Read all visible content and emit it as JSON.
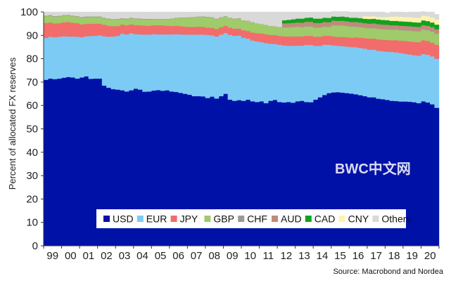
{
  "chart_data": {
    "type": "area",
    "stacked": true,
    "ylabel": "Percent of allocated FX reserves",
    "xlabel": "",
    "ylim": [
      0,
      100
    ],
    "yticks": [
      0,
      10,
      20,
      30,
      40,
      50,
      60,
      70,
      80,
      90,
      100
    ],
    "xlim": [
      1999.0,
      2021.0
    ],
    "xtick_labels": [
      "99",
      "00",
      "01",
      "02",
      "03",
      "04",
      "05",
      "06",
      "07",
      "08",
      "09",
      "10",
      "11",
      "12",
      "13",
      "14",
      "15",
      "16",
      "17",
      "18",
      "19",
      "20"
    ],
    "x_quarters": [
      1999.0,
      1999.25,
      1999.5,
      1999.75,
      2000.0,
      2000.25,
      2000.5,
      2000.75,
      2001.0,
      2001.25,
      2001.5,
      2001.75,
      2002.0,
      2002.25,
      2002.5,
      2002.75,
      2003.0,
      2003.25,
      2003.5,
      2003.75,
      2004.0,
      2004.25,
      2004.5,
      2004.75,
      2005.0,
      2005.25,
      2005.5,
      2005.75,
      2006.0,
      2006.25,
      2006.5,
      2006.75,
      2007.0,
      2007.25,
      2007.5,
      2007.75,
      2008.0,
      2008.25,
      2008.5,
      2008.75,
      2009.0,
      2009.25,
      2009.5,
      2009.75,
      2010.0,
      2010.25,
      2010.5,
      2010.75,
      2011.0,
      2011.25,
      2011.5,
      2011.75,
      2012.0,
      2012.25,
      2012.5,
      2012.75,
      2013.0,
      2013.25,
      2013.5,
      2013.75,
      2014.0,
      2014.25,
      2014.5,
      2014.75,
      2015.0,
      2015.25,
      2015.5,
      2015.75,
      2016.0,
      2016.25,
      2016.5,
      2016.75,
      2017.0,
      2017.25,
      2017.5,
      2017.75,
      2018.0,
      2018.25,
      2018.5,
      2018.75,
      2019.0,
      2019.25,
      2019.5,
      2019.75,
      2020.0,
      2020.25,
      2020.5,
      2020.75
    ],
    "series": [
      {
        "name": "USD",
        "color": "#0011a8",
        "values": [
          71.0,
          71.5,
          71.3,
          71.5,
          71.9,
          72.2,
          72.0,
          71.5,
          72.0,
          72.5,
          71.4,
          71.5,
          71.5,
          68.5,
          67.6,
          67.0,
          66.8,
          66.5,
          66.0,
          66.5,
          67.2,
          66.8,
          65.9,
          66.0,
          66.4,
          66.6,
          66.3,
          66.5,
          66.0,
          65.8,
          65.4,
          65.0,
          64.6,
          64.0,
          64.0,
          63.9,
          63.2,
          63.8,
          63.0,
          64.0,
          65.0,
          62.5,
          62.0,
          62.3,
          62.0,
          62.5,
          61.8,
          61.5,
          61.8,
          61.0,
          62.0,
          62.4,
          61.5,
          61.3,
          61.5,
          61.2,
          61.8,
          62.0,
          61.5,
          61.4,
          62.5,
          63.5,
          64.5,
          65.3,
          65.6,
          65.7,
          65.5,
          65.3,
          65.1,
          64.8,
          64.4,
          64.0,
          63.5,
          63.5,
          62.9,
          62.7,
          62.4,
          62.0,
          61.9,
          61.7,
          61.7,
          61.6,
          61.4,
          61.0,
          61.8,
          61.3,
          60.5,
          59.0
        ]
      },
      {
        "name": "EUR",
        "color": "#7ccbf5",
        "values": [
          17.9,
          17.9,
          17.9,
          17.9,
          17.7,
          17.3,
          17.5,
          17.9,
          17.2,
          17.1,
          18.3,
          18.3,
          18.5,
          21.1,
          21.8,
          22.5,
          23.0,
          24.2,
          24.4,
          24.4,
          23.3,
          23.6,
          24.4,
          24.3,
          24.1,
          23.8,
          24.1,
          23.9,
          24.4,
          24.7,
          25.0,
          25.3,
          25.7,
          26.3,
          26.3,
          26.4,
          27.0,
          26.2,
          26.5,
          26.3,
          26.0,
          27.7,
          27.8,
          27.6,
          27.0,
          26.1,
          26.0,
          25.9,
          25.3,
          25.7,
          24.4,
          23.9,
          24.5,
          24.4,
          24.1,
          24.3,
          23.8,
          23.6,
          24.4,
          24.5,
          23.0,
          22.0,
          21.5,
          20.7,
          20.1,
          19.8,
          19.9,
          19.9,
          19.9,
          20.1,
          20.2,
          20.3,
          20.4,
          20.4,
          20.5,
          20.5,
          20.6,
          20.9,
          20.8,
          20.7,
          20.4,
          20.2,
          20.1,
          20.3,
          20.2,
          20.4,
          20.5,
          21.0
        ]
      },
      {
        "name": "JPY",
        "color": "#f26c6b",
        "values": [
          6.4,
          6.1,
          5.9,
          5.8,
          6.0,
          6.2,
          5.9,
          5.8,
          5.5,
          5.3,
          5.3,
          5.2,
          5.0,
          4.9,
          4.7,
          4.4,
          4.2,
          3.9,
          3.9,
          3.8,
          3.9,
          3.9,
          3.9,
          3.8,
          3.8,
          3.9,
          3.9,
          3.7,
          3.6,
          3.6,
          3.5,
          3.4,
          3.3,
          3.3,
          3.4,
          3.3,
          3.1,
          3.2,
          3.2,
          3.2,
          3.1,
          3.1,
          3.1,
          3.0,
          3.2,
          3.3,
          3.4,
          3.5,
          3.7,
          3.8,
          3.8,
          3.8,
          3.8,
          3.9,
          3.9,
          4.0,
          4.0,
          3.9,
          3.9,
          3.9,
          3.9,
          3.9,
          3.8,
          3.8,
          3.8,
          3.8,
          3.9,
          4.0,
          4.0,
          4.2,
          4.4,
          4.5,
          4.7,
          4.8,
          4.9,
          4.9,
          5.0,
          5.0,
          5.2,
          5.3,
          5.5,
          5.6,
          5.7,
          5.8,
          5.9,
          5.9,
          5.9,
          6.0
        ]
      },
      {
        "name": "GBP",
        "color": "#9fcb6a",
        "values": [
          2.9,
          2.9,
          2.9,
          2.9,
          2.8,
          2.8,
          2.8,
          2.8,
          2.9,
          2.9,
          2.8,
          2.8,
          2.8,
          2.8,
          2.8,
          2.8,
          2.8,
          2.5,
          2.6,
          2.6,
          2.6,
          2.6,
          2.6,
          2.7,
          2.6,
          2.6,
          2.6,
          2.8,
          3.1,
          3.3,
          3.6,
          3.8,
          4.0,
          4.1,
          4.2,
          4.4,
          4.5,
          4.4,
          4.3,
          4.1,
          4.0,
          4.1,
          4.1,
          4.3,
          4.2,
          4.3,
          4.4,
          4.2,
          4.0,
          3.9,
          3.8,
          3.7,
          3.7,
          3.8,
          3.9,
          4.0,
          4.0,
          4.0,
          4.0,
          4.0,
          3.9,
          3.9,
          3.9,
          3.8,
          4.8,
          4.9,
          4.9,
          4.8,
          4.7,
          4.6,
          4.5,
          4.4,
          4.4,
          4.4,
          4.5,
          4.5,
          4.5,
          4.5,
          4.5,
          4.5,
          4.5,
          4.6,
          4.6,
          4.6,
          4.6,
          4.6,
          4.7,
          4.6
        ]
      },
      {
        "name": "CHF",
        "color": "#9a9a9a",
        "values": [
          0.3,
          0.3,
          0.3,
          0.3,
          0.3,
          0.3,
          0.3,
          0.3,
          0.3,
          0.3,
          0.3,
          0.3,
          0.3,
          0.3,
          0.3,
          0.3,
          0.3,
          0.3,
          0.3,
          0.3,
          0.3,
          0.3,
          0.3,
          0.3,
          0.2,
          0.2,
          0.2,
          0.2,
          0.2,
          0.2,
          0.2,
          0.2,
          0.2,
          0.2,
          0.2,
          0.2,
          0.2,
          0.2,
          0.2,
          0.2,
          0.2,
          0.2,
          0.2,
          0.2,
          0.1,
          0.1,
          0.1,
          0.1,
          0.1,
          0.1,
          0.1,
          0.1,
          0.1,
          0.2,
          0.2,
          0.2,
          0.2,
          0.2,
          0.2,
          0.2,
          0.2,
          0.2,
          0.2,
          0.2,
          0.2,
          0.2,
          0.2,
          0.2,
          0.2,
          0.2,
          0.2,
          0.2,
          0.2,
          0.2,
          0.2,
          0.2,
          0.2,
          0.2,
          0.2,
          0.2,
          0.2,
          0.2,
          0.2,
          0.2,
          0.2,
          0.2,
          0.2,
          0.2
        ]
      },
      {
        "name": "AUD",
        "color": "#c28a7c",
        "values": [
          0,
          0,
          0,
          0,
          0,
          0,
          0,
          0,
          0,
          0,
          0,
          0,
          0,
          0,
          0,
          0,
          0,
          0,
          0,
          0,
          0,
          0,
          0,
          0,
          0,
          0,
          0,
          0,
          0,
          0,
          0,
          0,
          0,
          0,
          0,
          0,
          0,
          0,
          0,
          0,
          0,
          0,
          0,
          0,
          0,
          0,
          0,
          0,
          0,
          0,
          0,
          0,
          0,
          1.5,
          1.6,
          1.6,
          1.7,
          1.7,
          1.8,
          1.8,
          1.8,
          1.8,
          1.8,
          1.8,
          1.8,
          1.8,
          1.8,
          1.8,
          1.8,
          1.8,
          1.8,
          1.8,
          1.8,
          1.8,
          1.8,
          1.8,
          1.8,
          1.7,
          1.7,
          1.7,
          1.7,
          1.7,
          1.7,
          1.7,
          1.7,
          1.7,
          1.7,
          1.8
        ]
      },
      {
        "name": "CAD",
        "color": "#12a21e",
        "values": [
          0,
          0,
          0,
          0,
          0,
          0,
          0,
          0,
          0,
          0,
          0,
          0,
          0,
          0,
          0,
          0,
          0,
          0,
          0,
          0,
          0,
          0,
          0,
          0,
          0,
          0,
          0,
          0,
          0,
          0,
          0,
          0,
          0,
          0,
          0,
          0,
          0,
          0,
          0,
          0,
          0,
          0,
          0,
          0,
          0,
          0,
          0,
          0,
          0,
          0,
          0,
          0,
          0,
          1.4,
          1.5,
          1.6,
          1.7,
          1.8,
          1.8,
          1.9,
          1.9,
          1.9,
          1.9,
          1.9,
          1.8,
          1.8,
          1.9,
          1.9,
          1.9,
          1.9,
          1.9,
          1.9,
          2.0,
          2.0,
          2.0,
          2.0,
          2.0,
          1.9,
          1.9,
          1.9,
          1.9,
          1.9,
          1.9,
          1.9,
          2.0,
          2.0,
          2.0,
          2.0
        ]
      },
      {
        "name": "CNY",
        "color": "#fff3b0",
        "values": [
          0,
          0,
          0,
          0,
          0,
          0,
          0,
          0,
          0,
          0,
          0,
          0,
          0,
          0,
          0,
          0,
          0,
          0,
          0,
          0,
          0,
          0,
          0,
          0,
          0,
          0,
          0,
          0,
          0,
          0,
          0,
          0,
          0,
          0,
          0,
          0,
          0,
          0,
          0,
          0,
          0,
          0,
          0,
          0,
          0,
          0,
          0,
          0,
          0,
          0,
          0,
          0,
          0,
          0,
          0,
          0,
          0,
          0,
          0,
          0,
          0,
          0,
          0,
          0,
          0,
          0,
          0,
          0,
          0,
          0,
          0,
          1.1,
          1.1,
          1.1,
          1.1,
          1.2,
          1.4,
          1.8,
          1.9,
          1.9,
          1.9,
          2.0,
          2.0,
          2.0,
          2.0,
          2.1,
          2.1,
          2.2
        ]
      },
      {
        "name": "Others",
        "color": "#d9d9d9",
        "values": [
          1.5,
          1.3,
          1.7,
          1.6,
          1.3,
          1.2,
          1.5,
          1.7,
          2.1,
          1.9,
          1.9,
          1.9,
          1.9,
          2.4,
          2.8,
          3.0,
          2.9,
          2.6,
          2.8,
          2.4,
          2.7,
          2.8,
          2.9,
          2.9,
          2.9,
          2.9,
          2.9,
          2.9,
          2.7,
          2.4,
          2.3,
          2.3,
          2.2,
          2.1,
          1.9,
          1.8,
          2.0,
          2.2,
          2.8,
          2.2,
          1.7,
          2.4,
          2.8,
          2.6,
          3.5,
          3.7,
          4.3,
          4.8,
          5.1,
          5.5,
          5.9,
          6.1,
          6.4,
          3.5,
          3.3,
          3.1,
          2.8,
          2.8,
          2.4,
          2.3,
          2.8,
          2.8,
          2.4,
          2.5,
          2.1,
          2.2,
          2.1,
          2.3,
          2.4,
          2.4,
          2.6,
          1.8,
          1.9,
          1.8,
          2.1,
          2.2,
          1.7,
          2.0,
          1.9,
          2.1,
          2.1,
          2.2,
          2.4,
          2.5,
          1.8,
          1.8,
          2.4,
          2.2
        ]
      }
    ],
    "legend": {
      "position": "bottom-right",
      "entries": [
        "USD",
        "EUR",
        "JPY",
        "GBP",
        "CHF",
        "AUD",
        "CAD",
        "CNY",
        "Others"
      ]
    },
    "source": "Source: Macrobond and Nordea",
    "watermark": "BWC中文网",
    "grid": false
  }
}
